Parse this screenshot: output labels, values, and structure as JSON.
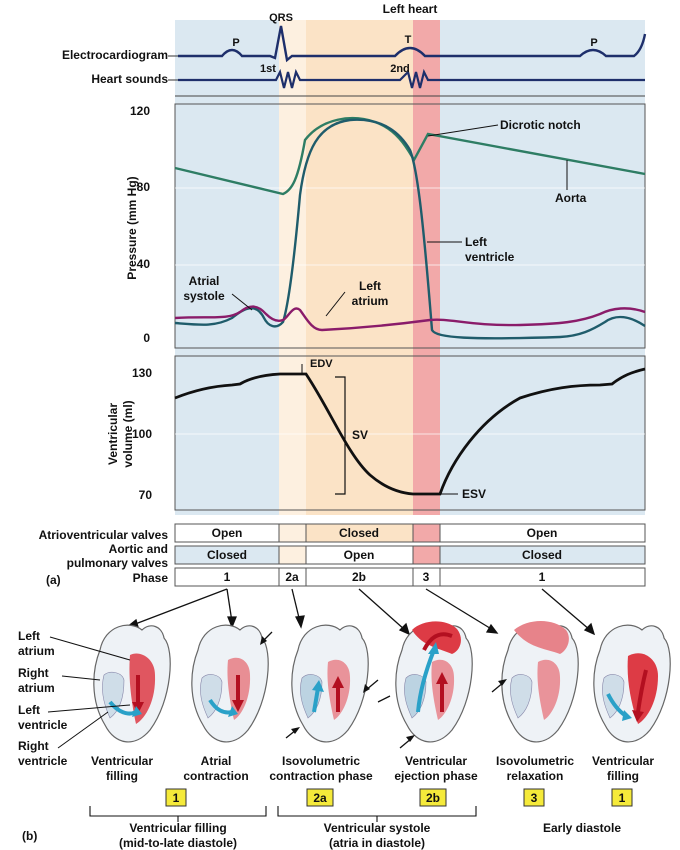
{
  "title": "Left heart",
  "panel_a_label": "(a)",
  "panel_b_label": "(b)",
  "ecg": {
    "label": "Electrocardiogram",
    "sounds_label": "Heart sounds",
    "wave_p": "P",
    "wave_qrs": "QRS",
    "wave_t": "T",
    "wave_p2": "P",
    "sound_1": "1st",
    "sound_2": "2nd"
  },
  "pressure": {
    "ylabel": "Pressure (mm Hg)",
    "ticks": [
      "0",
      "40",
      "80",
      "120"
    ],
    "atrial_systole_1": "Atrial",
    "atrial_systole_2": "systole",
    "dicrotic_notch": "Dicrotic notch",
    "aorta": "Aorta",
    "left_ventricle_1": "Left",
    "left_ventricle_2": "ventricle",
    "left_atrium_1": "Left",
    "left_atrium_2": "atrium"
  },
  "volume": {
    "ylabel_1": "Ventricular",
    "ylabel_2": "volume (ml)",
    "ticks": [
      "70",
      "100",
      "130"
    ],
    "edv": "EDV",
    "sv": "SV",
    "esv": "ESV"
  },
  "valves": {
    "av_label": "Atrioventricular valves",
    "aortic_label_1": "Aortic and",
    "aortic_label_2": "pulmonary valves",
    "phase_label": "Phase",
    "av_states": [
      "Open",
      "Closed",
      "Open"
    ],
    "aortic_states": [
      "Closed",
      "Open",
      "Closed"
    ],
    "phases": [
      "1",
      "2a",
      "2b",
      "3",
      "1"
    ]
  },
  "heart_labels": {
    "left_atrium_1": "Left",
    "left_atrium_2": "atrium",
    "right_atrium_1": "Right",
    "right_atrium_2": "atrium",
    "left_ventricle_1": "Left",
    "left_ventricle_2": "ventricle",
    "right_ventricle_1": "Right",
    "right_ventricle_2": "ventricle"
  },
  "stages": [
    {
      "line1": "Ventricular",
      "line2": "filling",
      "badge": "1"
    },
    {
      "line1": "Atrial",
      "line2": "contraction",
      "badge": ""
    },
    {
      "line1": "Isovolumetric",
      "line2": "contraction phase",
      "badge": "2a"
    },
    {
      "line1": "Ventricular",
      "line2": "ejection phase",
      "badge": "2b"
    },
    {
      "line1": "Isovolumetric",
      "line2": "relaxation",
      "badge": "3"
    },
    {
      "line1": "Ventricular",
      "line2": "filling",
      "badge": "1"
    }
  ],
  "groups": {
    "filling_1": "Ventricular filling",
    "filling_2": "(mid-to-late diastole)",
    "systole_1": "Ventricular systole",
    "systole_2": "(atria in diastole)",
    "early": "Early diastole"
  },
  "colors": {
    "diastole_bg": "#dbe8f1",
    "isovol_contraction_bg": "#fde9d4",
    "ejection_bg": "#fbe2c4",
    "relaxation_bg": "#f2a5a5",
    "aorta_line": "#2e7d64",
    "ventricle_line": "#1f5c6b",
    "atrium_line": "#8a1c6a",
    "ecg_line": "#1e2f6b",
    "badge": "#f5ea3a",
    "heart_red": "#dd3b45",
    "heart_blue": "#2aa1c8"
  }
}
